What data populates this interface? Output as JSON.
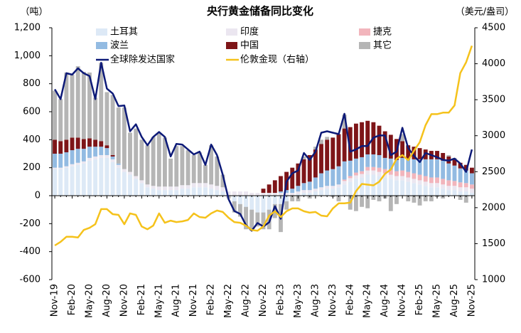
{
  "chart_data": {
    "type": "bar",
    "stacked": true,
    "title": "央行黄金储备同比变化",
    "y_unit": "（吨）",
    "y2_unit": "（美元/盎司）",
    "categories": [
      "Nov-19",
      null,
      null,
      "Feb-20",
      null,
      null,
      "May-20",
      null,
      null,
      "Aug-20",
      null,
      null,
      "Nov-20",
      null,
      null,
      "Feb-21",
      null,
      null,
      "May-21",
      null,
      null,
      "Aug-21",
      null,
      null,
      "Nov-21",
      null,
      null,
      "Feb-22",
      null,
      null,
      "May-22",
      null,
      null,
      "Aug-22",
      null,
      null,
      "Nov-22",
      null,
      null,
      "Feb-23",
      null,
      null,
      "May-23",
      null,
      null,
      "Aug-23",
      null,
      null,
      "Nov-23",
      null,
      null,
      "Feb-24",
      null,
      null,
      "May-24",
      null,
      null,
      "Aug-24",
      null,
      null,
      "Nov-24",
      null,
      null,
      "Feb-25",
      null,
      null,
      "May-25",
      null,
      null,
      "Aug-25",
      null,
      null,
      "Nov-25"
    ],
    "ylim": [
      -600,
      1200
    ],
    "yticks": [
      {
        "value": 1200,
        "label": "1,200"
      },
      {
        "value": 1000,
        "label": "1,000"
      },
      800,
      600,
      400,
      200,
      0,
      -200,
      -400,
      -600
    ],
    "y2lim": [
      1000,
      4500
    ],
    "y2ticks": [
      4500,
      4000,
      3500,
      3000,
      2500,
      2000,
      1500,
      1000
    ],
    "negative_tick_color": "#e02020",
    "series": [
      {
        "name": "土耳其",
        "type": "bar",
        "color": "#dde9f6",
        "values": [
          190,
          190,
          200,
          210,
          220,
          230,
          250,
          260,
          270,
          270,
          240,
          200,
          170,
          150,
          120,
          90,
          60,
          50,
          40,
          40,
          40,
          40,
          50,
          50,
          60,
          60,
          60,
          50,
          40,
          30,
          0,
          -40,
          -60,
          -80,
          -100,
          -120,
          -120,
          -100,
          -60,
          -60,
          -40,
          0,
          10,
          20,
          20,
          30,
          40,
          50,
          50,
          60,
          80,
          100,
          120,
          130,
          150,
          150,
          140,
          130,
          120,
          110,
          110,
          100,
          90,
          80,
          70,
          60,
          60,
          50,
          40,
          40,
          30,
          30,
          20
        ]
      },
      {
        "name": "印度",
        "type": "bar",
        "color": "#ebe6f0",
        "values": [
          10,
          10,
          10,
          15,
          15,
          15,
          20,
          20,
          20,
          20,
          20,
          20,
          20,
          20,
          20,
          20,
          20,
          20,
          25,
          25,
          25,
          25,
          25,
          25,
          30,
          30,
          30,
          30,
          30,
          30,
          30,
          30,
          30,
          30,
          20,
          20,
          20,
          20,
          20,
          20,
          20,
          20,
          20,
          20,
          20,
          20,
          20,
          20,
          20,
          20,
          25,
          25,
          25,
          25,
          30,
          30,
          30,
          30,
          30,
          30,
          30,
          30,
          30,
          30,
          30,
          30,
          30,
          30,
          30,
          30,
          30,
          30,
          30
        ]
      },
      {
        "name": "捷克",
        "type": "bar",
        "color": "#f2b5bc",
        "values": [
          0,
          0,
          0,
          0,
          0,
          0,
          0,
          0,
          0,
          0,
          0,
          0,
          0,
          0,
          0,
          0,
          0,
          0,
          0,
          0,
          0,
          0,
          0,
          0,
          0,
          0,
          0,
          0,
          0,
          0,
          0,
          0,
          0,
          0,
          0,
          0,
          0,
          0,
          0,
          0,
          0,
          0,
          0,
          0,
          0,
          0,
          0,
          0,
          0,
          0,
          10,
          15,
          20,
          20,
          25,
          25,
          30,
          30,
          35,
          35,
          40,
          40,
          40,
          40,
          40,
          40,
          40,
          40,
          40,
          35,
          35,
          30,
          30
        ]
      },
      {
        "name": "波兰",
        "type": "bar",
        "color": "#93bbe2",
        "values": [
          100,
          100,
          100,
          100,
          100,
          90,
          80,
          70,
          60,
          50,
          20,
          10,
          0,
          0,
          0,
          0,
          0,
          0,
          0,
          0,
          0,
          0,
          0,
          0,
          0,
          0,
          0,
          0,
          0,
          0,
          0,
          0,
          0,
          0,
          0,
          0,
          0,
          0,
          0,
          10,
          20,
          30,
          40,
          50,
          60,
          80,
          100,
          110,
          120,
          130,
          130,
          110,
          100,
          100,
          90,
          90,
          90,
          80,
          80,
          80,
          90,
          90,
          100,
          110,
          120,
          130,
          130,
          130,
          120,
          110,
          100,
          90,
          80
        ]
      },
      {
        "name": "中国",
        "type": "bar",
        "color": "#7e1518",
        "values": [
          100,
          90,
          90,
          90,
          80,
          70,
          60,
          50,
          40,
          20,
          10,
          0,
          0,
          0,
          0,
          0,
          0,
          0,
          0,
          0,
          0,
          0,
          0,
          0,
          0,
          0,
          0,
          0,
          0,
          0,
          0,
          0,
          0,
          0,
          0,
          0,
          30,
          60,
          90,
          110,
          130,
          150,
          160,
          170,
          190,
          200,
          210,
          220,
          225,
          230,
          235,
          240,
          250,
          250,
          240,
          230,
          210,
          190,
          170,
          150,
          120,
          100,
          90,
          80,
          70,
          60,
          60,
          55,
          50,
          45,
          40,
          40,
          40
        ]
      },
      {
        "name": "其它",
        "type": "bar",
        "color": "#b5b5b5",
        "values": [
          350,
          300,
          480,
          450,
          510,
          480,
          470,
          300,
          560,
          380,
          430,
          400,
          440,
          280,
          340,
          290,
          280,
          350,
          380,
          350,
          200,
          290,
          280,
          250,
          200,
          220,
          130,
          280,
          210,
          90,
          -20,
          -80,
          -90,
          -160,
          -150,
          -100,
          -120,
          -140,
          -100,
          -200,
          -60,
          -40,
          -40,
          20,
          -20,
          20,
          30,
          20,
          -10,
          -40,
          100,
          -100,
          -110,
          -80,
          -90,
          -30,
          -40,
          -20,
          -110,
          -60,
          50,
          -40,
          -50,
          -70,
          -40,
          -40,
          -10,
          -20,
          10,
          10,
          -30,
          -50,
          0
        ]
      },
      {
        "name": "全球除发达国家",
        "type": "line",
        "color": "#0d1a78",
        "values": [
          760,
          690,
          875,
          865,
          910,
          875,
          855,
          690,
          950,
          765,
          730,
          640,
          645,
          460,
          510,
          420,
          360,
          420,
          455,
          420,
          280,
          370,
          365,
          330,
          295,
          315,
          220,
          365,
          290,
          150,
          -25,
          -110,
          -130,
          -210,
          -250,
          -195,
          -220,
          -190,
          -75,
          -165,
          100,
          160,
          180,
          305,
          255,
          315,
          450,
          460,
          450,
          440,
          585,
          315,
          330,
          355,
          355,
          415,
          430,
          430,
          290,
          315,
          485,
          340,
          285,
          240,
          305,
          290,
          275,
          255,
          250,
          265,
          230,
          170,
          330
        ]
      },
      {
        "name": "伦敦金现（右轴）",
        "type": "line",
        "axis": "y2",
        "color": "#f5c21b",
        "values": [
          1475,
          1525,
          1595,
          1595,
          1585,
          1690,
          1720,
          1770,
          1980,
          1980,
          1910,
          1900,
          1770,
          1920,
          1900,
          1740,
          1700,
          1750,
          1920,
          1790,
          1820,
          1800,
          1810,
          1830,
          1920,
          1870,
          1860,
          1920,
          1960,
          1940,
          1860,
          1800,
          1790,
          1750,
          1690,
          1680,
          1740,
          1890,
          1950,
          1870,
          1950,
          1990,
          1990,
          1950,
          1930,
          1940,
          1890,
          1880,
          1990,
          2060,
          2060,
          2070,
          2230,
          2330,
          2320,
          2310,
          2360,
          2470,
          2530,
          2680,
          2730,
          2660,
          2790,
          2910,
          3145,
          3300,
          3300,
          3320,
          3320,
          3420,
          3870,
          4020,
          4250
        ]
      }
    ]
  }
}
